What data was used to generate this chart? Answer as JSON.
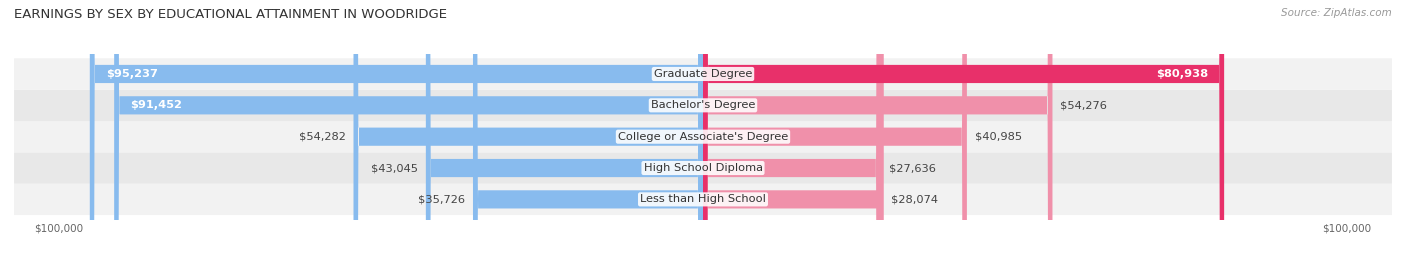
{
  "title": "EARNINGS BY SEX BY EDUCATIONAL ATTAINMENT IN WOODRIDGE",
  "source": "Source: ZipAtlas.com",
  "categories": [
    "Less than High School",
    "High School Diploma",
    "College or Associate's Degree",
    "Bachelor's Degree",
    "Graduate Degree"
  ],
  "male_values": [
    35726,
    43045,
    54282,
    91452,
    95237
  ],
  "female_values": [
    28074,
    27636,
    40985,
    54276,
    80938
  ],
  "male_color": "#88bbee",
  "female_colors": [
    "#f090aa",
    "#f090aa",
    "#f090aa",
    "#f090aa",
    "#e8306a"
  ],
  "row_bg_colors": [
    "#f2f2f2",
    "#e8e8e8"
  ],
  "max_value": 100000,
  "title_fontsize": 9.5,
  "label_fontsize": 8.2,
  "tick_fontsize": 7.5,
  "legend_fontsize": 8,
  "bar_height": 0.58,
  "bg_color": "#ffffff"
}
